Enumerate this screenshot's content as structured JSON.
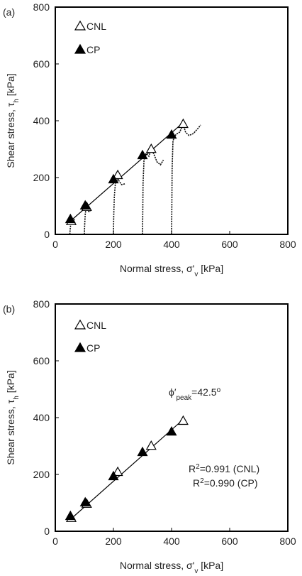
{
  "chart_data": [
    {
      "type": "scatter",
      "panel_label": "(a)",
      "xlabel": "Normal stress, σ'v [kPa]",
      "xlabel_main": "Normal stress, σ'",
      "xlabel_sub": "v",
      "xlabel_unit": " [kPa]",
      "ylabel": "Shear stress, τh [kPa]",
      "ylabel_main": "Shear stress, τ",
      "ylabel_sub": "h",
      "ylabel_unit": " [kPa]",
      "xlim": [
        0,
        800
      ],
      "ylim": [
        0,
        800
      ],
      "xticks": [
        "0",
        "200",
        "400",
        "600",
        "800"
      ],
      "yticks": [
        "0",
        "200",
        "400",
        "600",
        "800"
      ],
      "grid": false,
      "legend_position": "top-left",
      "series": [
        {
          "name": "CNL",
          "marker": "open-triangle",
          "x": [
            55,
            108,
            215,
            330,
            440
          ],
          "y": [
            48,
            98,
            210,
            302,
            390
          ]
        },
        {
          "name": "CP",
          "marker": "filled-triangle",
          "x": [
            52,
            103,
            200,
            300,
            400
          ],
          "y": [
            55,
            103,
            195,
            280,
            352
          ]
        }
      ],
      "fit_line": {
        "x": [
          50,
          445
        ],
        "y": [
          45,
          398
        ]
      },
      "stress_paths": [
        [
          [
            50,
            0
          ],
          [
            51,
            15
          ],
          [
            53,
            35
          ],
          [
            55,
            48
          ],
          [
            60,
            50
          ],
          [
            68,
            52
          ]
        ],
        [
          [
            100,
            0
          ],
          [
            101,
            30
          ],
          [
            103,
            70
          ],
          [
            106,
            95
          ],
          [
            112,
            82
          ],
          [
            118,
            80
          ],
          [
            125,
            88
          ]
        ],
        [
          [
            200,
            0
          ],
          [
            201,
            60
          ],
          [
            203,
            130
          ],
          [
            207,
            185
          ],
          [
            212,
            205
          ],
          [
            218,
            190
          ],
          [
            228,
            175
          ],
          [
            240,
            178
          ]
        ],
        [
          [
            300,
            0
          ],
          [
            301,
            80
          ],
          [
            302,
            180
          ],
          [
            305,
            260
          ],
          [
            312,
            285
          ],
          [
            322,
            275
          ],
          [
            330,
            300
          ],
          [
            338,
            285
          ],
          [
            350,
            255
          ],
          [
            362,
            245
          ],
          [
            372,
            262
          ]
        ],
        [
          [
            400,
            0
          ],
          [
            401,
            100
          ],
          [
            402,
            230
          ],
          [
            405,
            330
          ],
          [
            415,
            352
          ],
          [
            428,
            360
          ],
          [
            440,
            388
          ],
          [
            448,
            360
          ],
          [
            460,
            348
          ],
          [
            475,
            355
          ],
          [
            490,
            372
          ],
          [
            500,
            385
          ]
        ]
      ]
    },
    {
      "type": "scatter",
      "panel_label": "(b)",
      "xlabel": "Normal stress, σ'v [kPa]",
      "xlabel_main": "Normal stress, σ'",
      "xlabel_sub": "v",
      "xlabel_unit": " [kPa]",
      "ylabel": "Shear stress, τh [kPa]",
      "ylabel_main": "Shear stress, τ",
      "ylabel_sub": "h",
      "ylabel_unit": " [kPa]",
      "xlim": [
        0,
        800
      ],
      "ylim": [
        0,
        800
      ],
      "xticks": [
        "0",
        "200",
        "400",
        "600",
        "800"
      ],
      "yticks": [
        "0",
        "200",
        "400",
        "600",
        "800"
      ],
      "grid": false,
      "legend_position": "top-left",
      "series": [
        {
          "name": "CNL",
          "marker": "open-triangle",
          "x": [
            55,
            108,
            215,
            330,
            440
          ],
          "y": [
            48,
            98,
            210,
            302,
            390
          ]
        },
        {
          "name": "CP",
          "marker": "filled-triangle",
          "x": [
            52,
            103,
            200,
            300,
            400
          ],
          "y": [
            55,
            103,
            195,
            280,
            352
          ]
        }
      ],
      "fit_line": {
        "x": [
          50,
          445
        ],
        "y": [
          40,
          398
        ]
      },
      "annotations": {
        "phi_main": "ϕ′",
        "phi_sub": "peak",
        "phi_value": "=42.5",
        "phi_sup": "o",
        "r2_cnl_prefix": "R",
        "r2_cnl_sup": "2",
        "r2_cnl_value": "=0.991 (CNL)",
        "r2_cp_prefix": "R",
        "r2_cp_sup": "2",
        "r2_cp_value": "=0.990 (CP)"
      }
    }
  ]
}
